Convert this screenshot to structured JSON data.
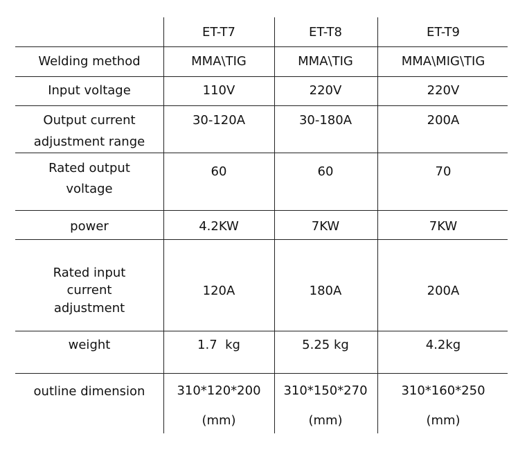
{
  "table": {
    "columns": [
      "ET-T7",
      "ET-T8",
      "ET-T9"
    ],
    "rows": [
      {
        "label": [
          "Welding method"
        ],
        "values": [
          [
            "MMA\\TIG"
          ],
          [
            "MMA\\TIG"
          ],
          [
            "MMA\\MIG\\TIG"
          ]
        ]
      },
      {
        "label": [
          "Input voltage"
        ],
        "values": [
          [
            "110V"
          ],
          [
            "220V"
          ],
          [
            "220V"
          ]
        ]
      },
      {
        "label": [
          "Output current",
          "adjustment range"
        ],
        "values": [
          [
            "30-120A"
          ],
          [
            "30-180A"
          ],
          [
            "200A"
          ]
        ]
      },
      {
        "label": [
          "Rated output",
          "voltage"
        ],
        "values": [
          [
            "60"
          ],
          [
            "60"
          ],
          [
            "70"
          ]
        ]
      },
      {
        "label": [
          "power"
        ],
        "values": [
          [
            "4.2KW"
          ],
          [
            "7KW"
          ],
          [
            "7KW"
          ]
        ]
      },
      {
        "label": [
          "Rated input",
          "current",
          "adjustment"
        ],
        "values": [
          [
            "120A"
          ],
          [
            "180A"
          ],
          [
            "200A"
          ]
        ]
      },
      {
        "label": [
          "weight"
        ],
        "values": [
          [
            "1.7  kg"
          ],
          [
            "5.25 kg"
          ],
          [
            "4.2kg"
          ]
        ]
      },
      {
        "label": [
          "outline dimension"
        ],
        "values": [
          [
            "310*120*200",
            "(mm)"
          ],
          [
            "310*150*270",
            "(mm)"
          ],
          [
            "310*160*250",
            "(mm)"
          ]
        ]
      }
    ]
  }
}
